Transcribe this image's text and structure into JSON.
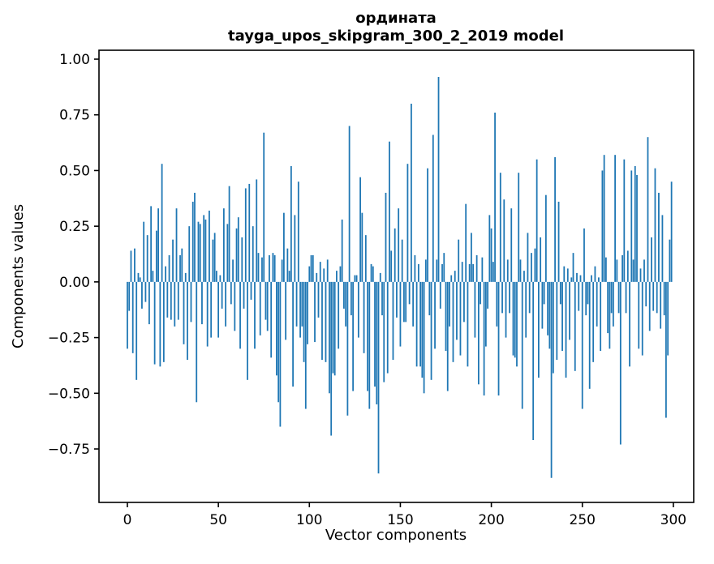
{
  "chart_data": {
    "type": "bar",
    "title_lines": [
      "ордината",
      "tayga_upos_skipgram_300_2_2019 model"
    ],
    "xlabel": "Vector components",
    "ylabel": "Components values",
    "x_ticks": [
      0,
      50,
      100,
      150,
      200,
      250,
      300
    ],
    "y_ticks": [
      1.0,
      0.75,
      0.5,
      0.25,
      0.0,
      -0.25,
      -0.5,
      -0.75
    ],
    "y_tick_labels": [
      "1.00",
      "0.75",
      "0.50",
      "0.25",
      "0.00",
      "−0.25",
      "−0.50",
      "−0.75"
    ],
    "xlim": [
      -15.6,
      311.2
    ],
    "ylim": [
      -0.99,
      1.04
    ],
    "grid": false,
    "legend": "none",
    "bar_color": "#1f77b4",
    "bar_width": 0.8,
    "x_start": 0,
    "values": [
      -0.3,
      -0.13,
      0.14,
      -0.32,
      0.15,
      -0.44,
      0.04,
      0.02,
      -0.12,
      0.27,
      -0.09,
      0.21,
      -0.19,
      0.34,
      0.05,
      -0.37,
      0.23,
      0.33,
      -0.38,
      0.53,
      -0.36,
      0.07,
      -0.16,
      0.12,
      -0.17,
      0.19,
      -0.2,
      0.33,
      -0.17,
      0.12,
      0.15,
      -0.28,
      0.04,
      -0.35,
      0.25,
      -0.18,
      0.36,
      0.4,
      -0.54,
      0.27,
      0.26,
      -0.19,
      0.3,
      0.28,
      -0.29,
      0.32,
      -0.25,
      0.19,
      0.22,
      0.05,
      -0.25,
      0.03,
      -0.12,
      0.33,
      -0.2,
      0.26,
      0.43,
      -0.1,
      0.1,
      -0.22,
      0.24,
      0.29,
      -0.3,
      0.2,
      -0.12,
      0.42,
      -0.44,
      0.44,
      -0.08,
      0.25,
      -0.3,
      0.46,
      0.13,
      -0.24,
      0.11,
      0.67,
      -0.17,
      -0.22,
      0.12,
      -0.34,
      0.13,
      0.12,
      -0.42,
      -0.54,
      -0.65,
      0.1,
      0.31,
      -0.26,
      0.15,
      0.05,
      0.52,
      -0.47,
      0.3,
      -0.2,
      0.45,
      -0.25,
      -0.2,
      -0.36,
      -0.57,
      -0.28,
      0.07,
      0.12,
      0.12,
      -0.27,
      0.04,
      -0.16,
      0.09,
      -0.35,
      0.06,
      -0.36,
      0.1,
      -0.5,
      -0.69,
      -0.41,
      -0.42,
      0.05,
      -0.3,
      0.07,
      0.28,
      -0.12,
      -0.2,
      -0.6,
      0.7,
      -0.15,
      -0.49,
      0.03,
      0.03,
      -0.25,
      0.47,
      0.31,
      -0.32,
      0.21,
      -0.49,
      -0.57,
      0.08,
      0.07,
      -0.47,
      -0.55,
      -0.86,
      0.04,
      -0.15,
      -0.45,
      0.4,
      -0.41,
      0.63,
      0.14,
      -0.35,
      0.24,
      -0.16,
      0.33,
      -0.29,
      0.19,
      -0.18,
      -0.18,
      0.53,
      -0.1,
      0.8,
      -0.2,
      0.12,
      -0.38,
      0.08,
      -0.38,
      -0.43,
      -0.5,
      0.1,
      0.51,
      -0.15,
      -0.44,
      0.66,
      -0.3,
      0.1,
      0.92,
      -0.12,
      0.08,
      0.13,
      -0.31,
      -0.49,
      -0.2,
      0.03,
      -0.36,
      0.05,
      -0.26,
      0.19,
      -0.33,
      0.09,
      -0.18,
      0.35,
      -0.38,
      0.08,
      0.22,
      0.08,
      -0.25,
      0.12,
      -0.46,
      -0.1,
      0.11,
      -0.51,
      -0.29,
      -0.12,
      0.3,
      0.24,
      0.09,
      0.76,
      -0.2,
      -0.51,
      0.49,
      -0.14,
      0.37,
      -0.25,
      0.1,
      -0.14,
      0.33,
      -0.33,
      -0.34,
      -0.38,
      0.49,
      0.1,
      -0.57,
      0.05,
      -0.25,
      0.22,
      -0.14,
      0.13,
      -0.71,
      0.15,
      0.55,
      -0.43,
      0.2,
      -0.21,
      -0.1,
      0.39,
      -0.24,
      -0.3,
      -0.88,
      -0.41,
      0.56,
      -0.35,
      0.36,
      -0.1,
      -0.31,
      0.07,
      -0.43,
      0.06,
      -0.26,
      0.02,
      0.13,
      -0.4,
      0.04,
      -0.13,
      0.03,
      -0.57,
      0.24,
      -0.15,
      -0.1,
      -0.48,
      0.03,
      -0.36,
      0.07,
      -0.2,
      0.02,
      -0.31,
      0.5,
      0.57,
      0.11,
      -0.23,
      -0.3,
      -0.14,
      -0.2,
      0.57,
      0.1,
      -0.14,
      -0.73,
      0.12,
      0.55,
      -0.14,
      0.14,
      -0.38,
      0.5,
      0.1,
      0.52,
      0.48,
      -0.3,
      0.06,
      -0.33,
      0.1,
      -0.11,
      0.65,
      -0.22,
      0.2,
      -0.13,
      0.51,
      -0.14,
      0.4,
      -0.21,
      0.3,
      -0.15,
      -0.61,
      -0.33,
      0.19,
      0.45
    ]
  }
}
